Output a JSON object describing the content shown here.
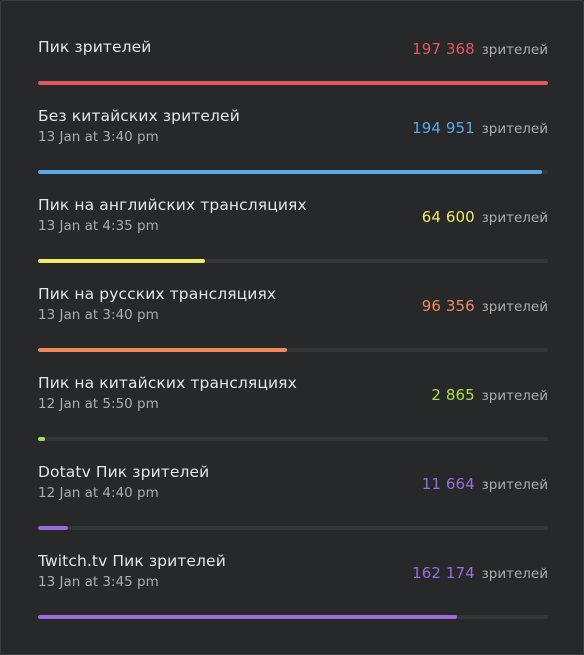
{
  "unit_label": "зрителей",
  "stats": [
    {
      "title": "Пик зрителей",
      "date": "",
      "value": "197 368",
      "fraction": 1.0,
      "color": "#e2575a"
    },
    {
      "title": "Без китайских зрителей",
      "date": "13 Jan at 3:40 pm",
      "value": "194 951",
      "fraction": 0.988,
      "color": "#5ba8e4"
    },
    {
      "title": "Пик на английских трансляциях",
      "date": "13 Jan at 4:35 pm",
      "value": "64 600",
      "fraction": 0.327,
      "color": "#f2ea6b"
    },
    {
      "title": "Пик на русских трансляциях",
      "date": "13 Jan at 3:40 pm",
      "value": "96 356",
      "fraction": 0.488,
      "color": "#ee8a5c"
    },
    {
      "title": "Пик на китайских трансляциях",
      "date": "12 Jan at 5:50 pm",
      "value": "2 865",
      "fraction": 0.0145,
      "color": "#a9e04c"
    },
    {
      "title": "Dotatv Пик зрителей",
      "date": "12 Jan at 4:40 pm",
      "value": "11 664",
      "fraction": 0.059,
      "color": "#9c6bdb"
    },
    {
      "title": "Twitch.tv Пик зрителей",
      "date": "13 Jan at 3:45 pm",
      "value": "162 174",
      "fraction": 0.822,
      "color": "#9c6bdb"
    }
  ]
}
